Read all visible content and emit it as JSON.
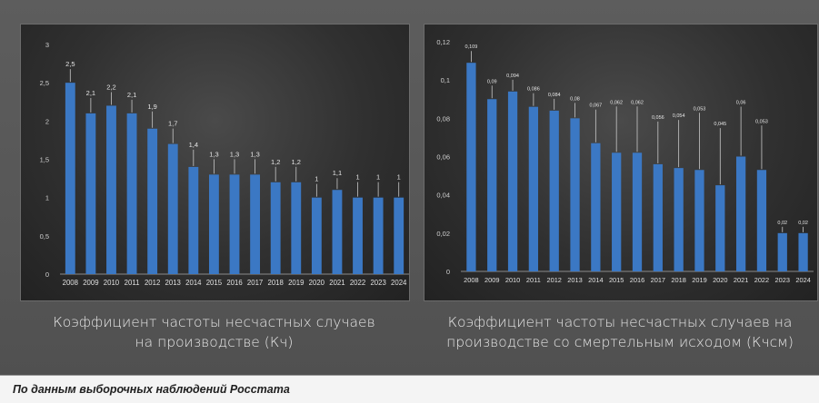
{
  "chart_data": [
    {
      "type": "bar",
      "categories": [
        "2008",
        "2009",
        "2010",
        "2011",
        "2012",
        "2013",
        "2014",
        "2015",
        "2016",
        "2017",
        "2018",
        "2019",
        "2020",
        "2021",
        "2022",
        "2023",
        "2024"
      ],
      "values": [
        2.5,
        2.1,
        2.2,
        2.1,
        1.9,
        1.7,
        1.4,
        1.3,
        1.3,
        1.3,
        1.2,
        1.2,
        1.0,
        1.1,
        1.0,
        1.0,
        1.0
      ],
      "labels": [
        "2,5",
        "2,1",
        "2,2",
        "2,1",
        "1,9",
        "1,7",
        "1,4",
        "1,3",
        "1,3",
        "1,3",
        "1,2",
        "1,2",
        "1",
        "1,1",
        "1",
        "1",
        "1"
      ],
      "yticks": [
        0,
        0.5,
        1,
        1.5,
        2,
        2.5,
        3
      ],
      "ytick_labels": [
        "0",
        "0,5",
        "1",
        "1,5",
        "2",
        "2,5",
        "3"
      ],
      "ylim": [
        0,
        3
      ],
      "grid": false,
      "bar_color": "#3b78c4",
      "caption": [
        "Коэффициент частоты несчастных случаев",
        "на производстве (Кч)"
      ]
    },
    {
      "type": "bar",
      "categories": [
        "2008",
        "2009",
        "2010",
        "2011",
        "2012",
        "2013",
        "2014",
        "2015",
        "2016",
        "2017",
        "2018",
        "2019",
        "2020",
        "2021",
        "2022",
        "2023",
        "2024"
      ],
      "values": [
        0.109,
        0.09,
        0.094,
        0.086,
        0.084,
        0.08,
        0.067,
        0.062,
        0.062,
        0.056,
        0.054,
        0.053,
        0.045,
        0.06,
        0.053,
        0.02,
        0.02
      ],
      "labels": [
        "0,109",
        "0,09",
        "0,094",
        "0,086",
        "0,084",
        "0,08",
        "0,067",
        "0,062",
        "0,062",
        "0,056",
        "0,054",
        "0,053",
        "0,045",
        "0,06",
        "0,053",
        "0,02",
        "0,02"
      ],
      "yticks": [
        0,
        0.02,
        0.04,
        0.06,
        0.08,
        0.1,
        0.12
      ],
      "ytick_labels": [
        "0",
        "0,02",
        "0,04",
        "0,06",
        "0,08",
        "0,1",
        "0,12"
      ],
      "ylim": [
        0,
        0.12
      ],
      "grid": false,
      "bar_color": "#3b78c4",
      "caption": [
        "Коэффициент частоты несчастных случаев на",
        "производстве со смертельным исходом (Кчсм)"
      ]
    }
  ],
  "footer": {
    "source_text": "По данным  выборочных наблюдений Росстата"
  }
}
